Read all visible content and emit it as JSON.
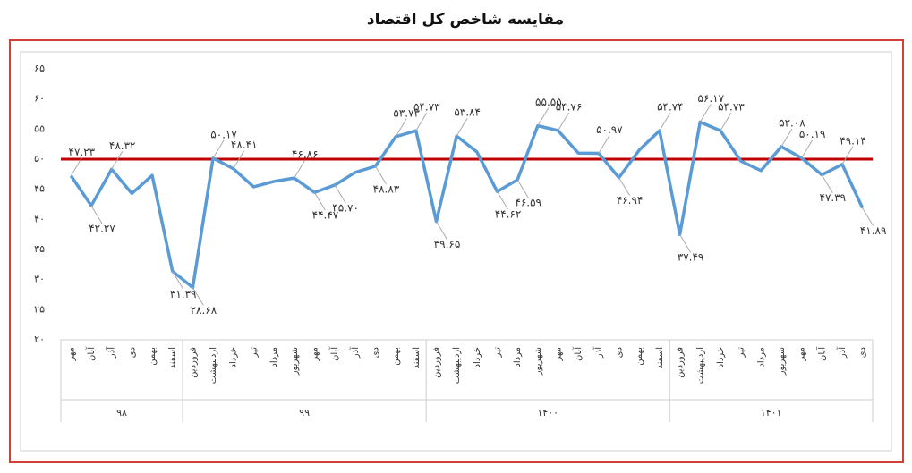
{
  "chart_data": {
    "type": "line",
    "title": "مقایسه شاخص کل اقتصاد",
    "groups": [
      {
        "name": "۹۸",
        "categories": [
          "مهر",
          "آبان",
          "آذر",
          "دی",
          "بهمن",
          "اسفند"
        ]
      },
      {
        "name": "۹۹",
        "categories": [
          "فروردین",
          "اردیبهشت",
          "خرداد",
          "تیر",
          "مرداد",
          "شهریور",
          "مهر",
          "آبان",
          "آذر",
          "دی",
          "بهمن",
          "اسفند"
        ]
      },
      {
        "name": "۱۴۰۰",
        "categories": [
          "فروردین",
          "اردیبهشت",
          "خرداد",
          "تیر",
          "مرداد",
          "شهریور",
          "مهر",
          "آبان",
          "آذر",
          "دی",
          "بهمن",
          "اسفند"
        ]
      },
      {
        "name": "۱۴۰۱",
        "categories": [
          "فروردین",
          "اردیبهشت",
          "خرداد",
          "تیر",
          "مرداد",
          "شهریور",
          "مهر",
          "آبان",
          "آذر",
          "دی"
        ]
      }
    ],
    "values": [
      47.23,
      42.27,
      48.32,
      44.3,
      47.3,
      31.39,
      28.68,
      50.17,
      48.41,
      45.4,
      46.3,
      46.86,
      44.47,
      45.7,
      47.8,
      48.83,
      53.73,
      54.73,
      39.65,
      53.84,
      51.2,
      44.62,
      46.59,
      55.55,
      54.76,
      51.0,
      50.97,
      46.94,
      51.5,
      54.74,
      37.49,
      56.17,
      54.73,
      49.7,
      48.1,
      52.08,
      50.19,
      47.39,
      49.14,
      41.89
    ],
    "value_labels": [
      "۴۷.۲۳",
      "۴۲.۲۷",
      "۴۸.۳۲",
      null,
      null,
      "۳۱.۳۹",
      "۲۸.۶۸",
      "۵۰.۱۷",
      "۴۸.۴۱",
      null,
      null,
      "۴۶.۸۶",
      "۴۴.۴۷",
      "۴۵.۷۰",
      null,
      "۴۸.۸۳",
      "۵۳.۷۳",
      "۵۴.۷۳",
      "۳۹.۶۵",
      "۵۳.۸۴",
      null,
      "۴۴.۶۲",
      "۴۶.۵۹",
      "۵۵.۵۵",
      "۵۴.۷۶",
      null,
      "۵۰.۹۷",
      "۴۶.۹۴",
      null,
      "۵۴.۷۴",
      "۳۷.۴۹",
      "۵۶.۱۷",
      "۵۴.۷۳",
      null,
      null,
      "۵۲.۰۸",
      "۵۰.۱۹",
      "۴۷.۳۹",
      "۴۹.۱۴",
      "۴۱.۸۹"
    ],
    "color": "#5b9bd5",
    "reference_line": {
      "value": 50,
      "color": "#c00000"
    },
    "ylim": [
      20,
      65
    ],
    "yticks": [
      {
        "value": 20,
        "label": "۲۰"
      },
      {
        "value": 25,
        "label": "۲۵"
      },
      {
        "value": 30,
        "label": "۳۰"
      },
      {
        "value": 35,
        "label": "۳۵"
      },
      {
        "value": 40,
        "label": "۴۰"
      },
      {
        "value": 45,
        "label": "۴۵"
      },
      {
        "value": 50,
        "label": "۵۰"
      },
      {
        "value": 55,
        "label": "۵۵"
      },
      {
        "value": 60,
        "label": "۶۰"
      },
      {
        "value": 65,
        "label": "۶۵"
      }
    ]
  }
}
